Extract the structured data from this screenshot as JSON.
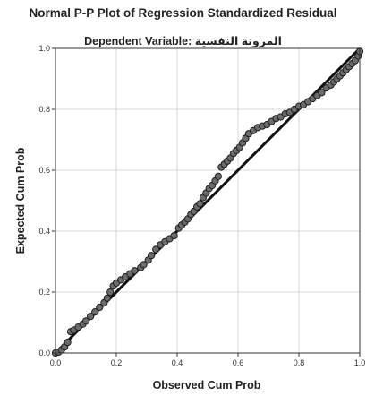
{
  "chart_data": {
    "type": "scatter",
    "title": "Normal P-P Plot of Regression Standardized Residual",
    "subtitle": "Dependent Variable: المرونة النفسية",
    "xlabel": "Observed Cum Prob",
    "ylabel": "Expected Cum Prob",
    "xlim": [
      0,
      1
    ],
    "ylim": [
      0,
      1
    ],
    "x_ticks": [
      "0.0",
      "0.2",
      "0.4",
      "0.6",
      "0.8",
      "1.0"
    ],
    "y_ticks": [
      "0.0",
      "0.2",
      "0.4",
      "0.6",
      "0.8",
      "1.0"
    ],
    "grid": true,
    "legend": "none",
    "reference_line": {
      "from": [
        0,
        0
      ],
      "to": [
        1,
        1
      ]
    },
    "colors": {
      "point_fill": "#6b6b6b",
      "point_stroke": "#1e1e1e",
      "line": "#111111",
      "grid": "#d9d9d9",
      "frame": "#333333"
    },
    "series": [
      {
        "points": [
          [
            0.0,
            0.0
          ],
          [
            0.01,
            0.003
          ],
          [
            0.02,
            0.01
          ],
          [
            0.03,
            0.02
          ],
          [
            0.04,
            0.035
          ],
          [
            0.05,
            0.07
          ],
          [
            0.06,
            0.075
          ],
          [
            0.075,
            0.085
          ],
          [
            0.09,
            0.095
          ],
          [
            0.1,
            0.105
          ],
          [
            0.115,
            0.12
          ],
          [
            0.13,
            0.135
          ],
          [
            0.145,
            0.15
          ],
          [
            0.16,
            0.165
          ],
          [
            0.17,
            0.18
          ],
          [
            0.18,
            0.2
          ],
          [
            0.19,
            0.22
          ],
          [
            0.2,
            0.23
          ],
          [
            0.215,
            0.24
          ],
          [
            0.23,
            0.25
          ],
          [
            0.245,
            0.26
          ],
          [
            0.26,
            0.27
          ],
          [
            0.28,
            0.28
          ],
          [
            0.29,
            0.29
          ],
          [
            0.305,
            0.305
          ],
          [
            0.315,
            0.32
          ],
          [
            0.33,
            0.34
          ],
          [
            0.345,
            0.355
          ],
          [
            0.36,
            0.365
          ],
          [
            0.375,
            0.375
          ],
          [
            0.39,
            0.385
          ],
          [
            0.405,
            0.41
          ],
          [
            0.415,
            0.42
          ],
          [
            0.425,
            0.43
          ],
          [
            0.435,
            0.44
          ],
          [
            0.445,
            0.455
          ],
          [
            0.455,
            0.465
          ],
          [
            0.465,
            0.48
          ],
          [
            0.475,
            0.49
          ],
          [
            0.485,
            0.51
          ],
          [
            0.495,
            0.525
          ],
          [
            0.505,
            0.54
          ],
          [
            0.515,
            0.55
          ],
          [
            0.525,
            0.565
          ],
          [
            0.535,
            0.58
          ],
          [
            0.545,
            0.61
          ],
          [
            0.555,
            0.62
          ],
          [
            0.565,
            0.63
          ],
          [
            0.575,
            0.64
          ],
          [
            0.585,
            0.655
          ],
          [
            0.595,
            0.665
          ],
          [
            0.605,
            0.675
          ],
          [
            0.615,
            0.69
          ],
          [
            0.625,
            0.705
          ],
          [
            0.635,
            0.72
          ],
          [
            0.65,
            0.73
          ],
          [
            0.665,
            0.74
          ],
          [
            0.68,
            0.745
          ],
          [
            0.695,
            0.75
          ],
          [
            0.71,
            0.76
          ],
          [
            0.725,
            0.77
          ],
          [
            0.74,
            0.775
          ],
          [
            0.755,
            0.785
          ],
          [
            0.77,
            0.79
          ],
          [
            0.785,
            0.8
          ],
          [
            0.8,
            0.81
          ],
          [
            0.815,
            0.815
          ],
          [
            0.83,
            0.825
          ],
          [
            0.845,
            0.835
          ],
          [
            0.86,
            0.845
          ],
          [
            0.875,
            0.855
          ],
          [
            0.89,
            0.87
          ],
          [
            0.905,
            0.88
          ],
          [
            0.915,
            0.89
          ],
          [
            0.925,
            0.9
          ],
          [
            0.935,
            0.91
          ],
          [
            0.945,
            0.92
          ],
          [
            0.955,
            0.93
          ],
          [
            0.965,
            0.94
          ],
          [
            0.975,
            0.95
          ],
          [
            0.985,
            0.96
          ],
          [
            0.995,
            0.975
          ],
          [
            1.0,
            0.99
          ]
        ]
      }
    ]
  }
}
